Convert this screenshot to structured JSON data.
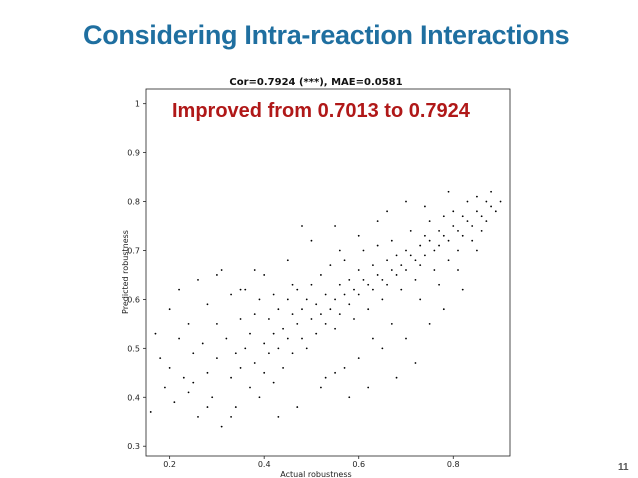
{
  "slide": {
    "title": "Considering Intra-reaction Interactions",
    "callout": "Improved from 0.7013 to 0.7924",
    "page_number": "11"
  },
  "chart_data": {
    "type": "scatter",
    "title": "Cor=0.7924 (***), MAE=0.0581",
    "xlabel": "Actual robustness",
    "ylabel": "Predicted robustness",
    "xlim": [
      0.15,
      0.92
    ],
    "ylim": [
      0.28,
      1.03
    ],
    "xticks": [
      0.2,
      0.4,
      0.6,
      0.8
    ],
    "xtick_labels": [
      "0.2",
      "0.4",
      "0.6",
      "0.8"
    ],
    "yticks": [
      0.3,
      0.4,
      0.5,
      0.6,
      0.7,
      0.8,
      0.9,
      1.0
    ],
    "ytick_labels": [
      "0.3",
      "0.4",
      "0.5",
      "0.6",
      "0.7",
      "0.8",
      "0.9",
      "1"
    ],
    "grid": false,
    "marker_color": "#000000",
    "points": [
      [
        0.16,
        0.37
      ],
      [
        0.17,
        0.53
      ],
      [
        0.18,
        0.48
      ],
      [
        0.19,
        0.42
      ],
      [
        0.2,
        0.46
      ],
      [
        0.2,
        0.58
      ],
      [
        0.21,
        0.39
      ],
      [
        0.22,
        0.52
      ],
      [
        0.22,
        0.62
      ],
      [
        0.23,
        0.44
      ],
      [
        0.24,
        0.41
      ],
      [
        0.24,
        0.55
      ],
      [
        0.25,
        0.49
      ],
      [
        0.26,
        0.64
      ],
      [
        0.26,
        0.36
      ],
      [
        0.27,
        0.51
      ],
      [
        0.28,
        0.45
      ],
      [
        0.28,
        0.59
      ],
      [
        0.29,
        0.4
      ],
      [
        0.3,
        0.55
      ],
      [
        0.3,
        0.48
      ],
      [
        0.31,
        0.34
      ],
      [
        0.31,
        0.66
      ],
      [
        0.32,
        0.52
      ],
      [
        0.33,
        0.44
      ],
      [
        0.33,
        0.61
      ],
      [
        0.34,
        0.49
      ],
      [
        0.34,
        0.38
      ],
      [
        0.35,
        0.56
      ],
      [
        0.35,
        0.46
      ],
      [
        0.36,
        0.5
      ],
      [
        0.36,
        0.62
      ],
      [
        0.37,
        0.42
      ],
      [
        0.37,
        0.53
      ],
      [
        0.38,
        0.57
      ],
      [
        0.38,
        0.47
      ],
      [
        0.39,
        0.4
      ],
      [
        0.39,
        0.6
      ],
      [
        0.4,
        0.51
      ],
      [
        0.4,
        0.45
      ],
      [
        0.41,
        0.56
      ],
      [
        0.41,
        0.49
      ],
      [
        0.42,
        0.53
      ],
      [
        0.42,
        0.43
      ],
      [
        0.43,
        0.58
      ],
      [
        0.43,
        0.5
      ],
      [
        0.44,
        0.54
      ],
      [
        0.44,
        0.46
      ],
      [
        0.45,
        0.6
      ],
      [
        0.45,
        0.52
      ],
      [
        0.46,
        0.57
      ],
      [
        0.46,
        0.49
      ],
      [
        0.47,
        0.55
      ],
      [
        0.47,
        0.62
      ],
      [
        0.48,
        0.52
      ],
      [
        0.48,
        0.58
      ],
      [
        0.49,
        0.5
      ],
      [
        0.49,
        0.6
      ],
      [
        0.5,
        0.56
      ],
      [
        0.5,
        0.63
      ],
      [
        0.51,
        0.53
      ],
      [
        0.51,
        0.59
      ],
      [
        0.52,
        0.57
      ],
      [
        0.52,
        0.65
      ],
      [
        0.53,
        0.55
      ],
      [
        0.53,
        0.61
      ],
      [
        0.54,
        0.58
      ],
      [
        0.54,
        0.67
      ],
      [
        0.55,
        0.6
      ],
      [
        0.55,
        0.54
      ],
      [
        0.56,
        0.63
      ],
      [
        0.56,
        0.57
      ],
      [
        0.57,
        0.61
      ],
      [
        0.57,
        0.68
      ],
      [
        0.58,
        0.59
      ],
      [
        0.58,
        0.64
      ],
      [
        0.59,
        0.62
      ],
      [
        0.59,
        0.56
      ],
      [
        0.6,
        0.66
      ],
      [
        0.6,
        0.61
      ],
      [
        0.61,
        0.64
      ],
      [
        0.61,
        0.7
      ],
      [
        0.62,
        0.63
      ],
      [
        0.62,
        0.58
      ],
      [
        0.63,
        0.67
      ],
      [
        0.63,
        0.62
      ],
      [
        0.64,
        0.65
      ],
      [
        0.64,
        0.71
      ],
      [
        0.65,
        0.64
      ],
      [
        0.65,
        0.6
      ],
      [
        0.66,
        0.68
      ],
      [
        0.66,
        0.63
      ],
      [
        0.67,
        0.66
      ],
      [
        0.67,
        0.72
      ],
      [
        0.68,
        0.65
      ],
      [
        0.68,
        0.69
      ],
      [
        0.69,
        0.67
      ],
      [
        0.69,
        0.62
      ],
      [
        0.7,
        0.7
      ],
      [
        0.7,
        0.66
      ],
      [
        0.71,
        0.69
      ],
      [
        0.71,
        0.74
      ],
      [
        0.72,
        0.68
      ],
      [
        0.72,
        0.64
      ],
      [
        0.73,
        0.71
      ],
      [
        0.73,
        0.67
      ],
      [
        0.74,
        0.73
      ],
      [
        0.74,
        0.69
      ],
      [
        0.75,
        0.72
      ],
      [
        0.75,
        0.76
      ],
      [
        0.76,
        0.7
      ],
      [
        0.76,
        0.66
      ],
      [
        0.77,
        0.74
      ],
      [
        0.77,
        0.71
      ],
      [
        0.78,
        0.73
      ],
      [
        0.78,
        0.77
      ],
      [
        0.79,
        0.72
      ],
      [
        0.79,
        0.68
      ],
      [
        0.8,
        0.75
      ],
      [
        0.8,
        0.78
      ],
      [
        0.81,
        0.74
      ],
      [
        0.81,
        0.7
      ],
      [
        0.82,
        0.77
      ],
      [
        0.82,
        0.73
      ],
      [
        0.83,
        0.76
      ],
      [
        0.83,
        0.8
      ],
      [
        0.84,
        0.75
      ],
      [
        0.84,
        0.72
      ],
      [
        0.85,
        0.78
      ],
      [
        0.85,
        0.81
      ],
      [
        0.86,
        0.77
      ],
      [
        0.86,
        0.74
      ],
      [
        0.87,
        0.8
      ],
      [
        0.87,
        0.76
      ],
      [
        0.88,
        0.79
      ],
      [
        0.88,
        0.82
      ],
      [
        0.89,
        0.78
      ],
      [
        0.9,
        0.8
      ],
      [
        0.55,
        0.45
      ],
      [
        0.6,
        0.48
      ],
      [
        0.65,
        0.5
      ],
      [
        0.7,
        0.52
      ],
      [
        0.75,
        0.55
      ],
      [
        0.45,
        0.68
      ],
      [
        0.5,
        0.72
      ],
      [
        0.55,
        0.75
      ],
      [
        0.4,
        0.65
      ],
      [
        0.35,
        0.62
      ],
      [
        0.62,
        0.42
      ],
      [
        0.68,
        0.44
      ],
      [
        0.72,
        0.47
      ],
      [
        0.78,
        0.58
      ],
      [
        0.82,
        0.62
      ],
      [
        0.48,
        0.75
      ],
      [
        0.52,
        0.42
      ],
      [
        0.58,
        0.4
      ],
      [
        0.3,
        0.65
      ],
      [
        0.25,
        0.43
      ],
      [
        0.28,
        0.38
      ],
      [
        0.33,
        0.36
      ],
      [
        0.43,
        0.36
      ],
      [
        0.47,
        0.38
      ],
      [
        0.53,
        0.44
      ],
      [
        0.57,
        0.46
      ],
      [
        0.63,
        0.52
      ],
      [
        0.67,
        0.55
      ],
      [
        0.73,
        0.6
      ],
      [
        0.77,
        0.63
      ],
      [
        0.81,
        0.66
      ],
      [
        0.85,
        0.7
      ],
      [
        0.64,
        0.76
      ],
      [
        0.6,
        0.73
      ],
      [
        0.56,
        0.7
      ],
      [
        0.46,
        0.63
      ],
      [
        0.42,
        0.61
      ],
      [
        0.38,
        0.66
      ],
      [
        0.66,
        0.78
      ],
      [
        0.7,
        0.8
      ],
      [
        0.74,
        0.79
      ],
      [
        0.79,
        0.82
      ]
    ]
  }
}
